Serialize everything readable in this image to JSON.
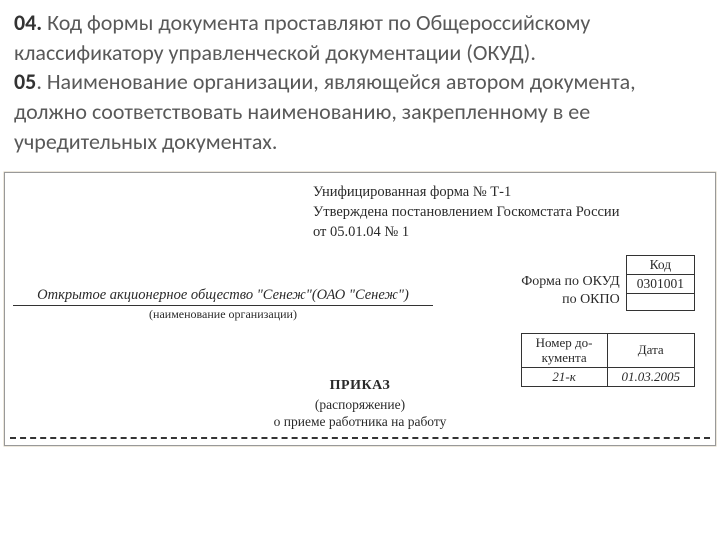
{
  "intro": {
    "item04_num": "04.",
    "item04_text": " Код формы документа проставляют по Общероссийскому классификатору управленческой документации (ОКУД).",
    "item05_num": "05",
    "item05_text": ". Наименование организации, являющейся автором документа, должно соответствовать наименованию, закрепленному в ее учредительных документах."
  },
  "form_header": {
    "line1": "Унифицированная форма № Т-1",
    "line2": "Утверждена постановлением Госкомстата России",
    "line3": "от 05.01.04 № 1"
  },
  "code_block": {
    "label_okud": "Форма по ОКУД",
    "label_okpo": "по ОКПО",
    "header": "Код",
    "okud_value": "0301001",
    "okpo_value": ""
  },
  "org": {
    "name": "Открытое акционерное общество \"Сенеж\"(ОАО \"Сенеж\")",
    "caption": "(наименование организации)"
  },
  "doc_num": {
    "col1_header": "Номер до-\nкумента",
    "col2_header": "Дата",
    "num_value": "21-к",
    "date_value": "01.03.2005"
  },
  "title": {
    "main": "ПРИКАЗ",
    "sub1": "(распоряжение)",
    "sub2": "о приеме работника на работу"
  },
  "colors": {
    "intro_text": "#595959",
    "intro_bold": "#333333",
    "border": "#333333",
    "page_bg": "#ffffff"
  }
}
